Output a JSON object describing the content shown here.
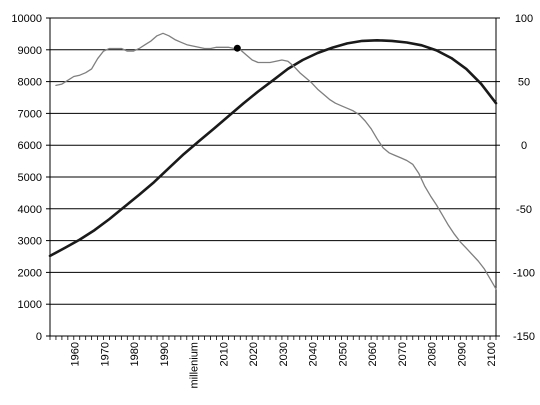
{
  "chart_data": {
    "type": "line",
    "title": "",
    "xlabel": "",
    "ylabel": "",
    "y2label": "",
    "grid": "horizontal",
    "legend": "none",
    "x_tick_labels": [
      {
        "x": 1960,
        "label": "1960"
      },
      {
        "x": 1970,
        "label": "1970"
      },
      {
        "x": 1980,
        "label": "1980"
      },
      {
        "x": 1990,
        "label": "1990"
      },
      {
        "x": 2000,
        "label": "millenium"
      },
      {
        "x": 2010,
        "label": "2010"
      },
      {
        "x": 2020,
        "label": "2020"
      },
      {
        "x": 2030,
        "label": "2030"
      },
      {
        "x": 2040,
        "label": "2040"
      },
      {
        "x": 2050,
        "label": "2050"
      },
      {
        "x": 2060,
        "label": "2060"
      },
      {
        "x": 2070,
        "label": "2070"
      },
      {
        "x": 2080,
        "label": "2080"
      },
      {
        "x": 2090,
        "label": "2090"
      },
      {
        "x": 2100,
        "label": "2100"
      }
    ],
    "xlim": [
      1950,
      2100
    ],
    "ylim_left": [
      0,
      10000
    ],
    "yticks_left": [
      0,
      1000,
      2000,
      3000,
      4000,
      5000,
      6000,
      7000,
      8000,
      9000,
      10000
    ],
    "ylim_right": [
      -150,
      100
    ],
    "yticks_right": [
      -150,
      -100,
      -50,
      0,
      50,
      100
    ],
    "series": [
      {
        "axis": "left",
        "color": "#1a1a1a",
        "values": [
          [
            1950,
            2520
          ],
          [
            1955,
            2770
          ],
          [
            1960,
            3030
          ],
          [
            1965,
            3330
          ],
          [
            1970,
            3680
          ],
          [
            1975,
            4060
          ],
          [
            1980,
            4440
          ],
          [
            1985,
            4840
          ],
          [
            1990,
            5280
          ],
          [
            1995,
            5720
          ],
          [
            2000,
            6120
          ],
          [
            2005,
            6510
          ],
          [
            2010,
            6910
          ],
          [
            2015,
            7310
          ],
          [
            2020,
            7690
          ],
          [
            2025,
            8040
          ],
          [
            2030,
            8400
          ],
          [
            2035,
            8680
          ],
          [
            2040,
            8900
          ],
          [
            2045,
            9070
          ],
          [
            2050,
            9200
          ],
          [
            2055,
            9280
          ],
          [
            2060,
            9300
          ],
          [
            2065,
            9280
          ],
          [
            2070,
            9230
          ],
          [
            2075,
            9140
          ],
          [
            2080,
            8980
          ],
          [
            2085,
            8740
          ],
          [
            2090,
            8400
          ],
          [
            2095,
            7930
          ],
          [
            2100,
            7320
          ]
        ]
      },
      {
        "axis": "right",
        "color": "#7f7f7f",
        "values": [
          [
            1952,
            47
          ],
          [
            1954,
            48
          ],
          [
            1956,
            51
          ],
          [
            1958,
            54
          ],
          [
            1960,
            55
          ],
          [
            1962,
            57
          ],
          [
            1964,
            60
          ],
          [
            1966,
            68
          ],
          [
            1968,
            74
          ],
          [
            1970,
            76
          ],
          [
            1972,
            76
          ],
          [
            1974,
            76
          ],
          [
            1976,
            74
          ],
          [
            1978,
            74
          ],
          [
            1980,
            76
          ],
          [
            1982,
            79
          ],
          [
            1984,
            82
          ],
          [
            1986,
            86
          ],
          [
            1988,
            88
          ],
          [
            1990,
            86
          ],
          [
            1992,
            83
          ],
          [
            1994,
            81
          ],
          [
            1996,
            79
          ],
          [
            1998,
            78
          ],
          [
            2000,
            77
          ],
          [
            2002,
            76
          ],
          [
            2004,
            76
          ],
          [
            2006,
            77
          ],
          [
            2008,
            77
          ],
          [
            2010,
            77
          ],
          [
            2012,
            76
          ],
          [
            2014,
            75
          ],
          [
            2016,
            71
          ],
          [
            2018,
            67
          ],
          [
            2020,
            65
          ],
          [
            2022,
            65
          ],
          [
            2024,
            65
          ],
          [
            2026,
            66
          ],
          [
            2028,
            67
          ],
          [
            2030,
            66
          ],
          [
            2032,
            62
          ],
          [
            2034,
            57
          ],
          [
            2036,
            53
          ],
          [
            2038,
            49
          ],
          [
            2040,
            44
          ],
          [
            2042,
            40
          ],
          [
            2044,
            36
          ],
          [
            2046,
            33
          ],
          [
            2048,
            31
          ],
          [
            2050,
            29
          ],
          [
            2052,
            27
          ],
          [
            2054,
            24
          ],
          [
            2056,
            19
          ],
          [
            2058,
            13
          ],
          [
            2060,
            5
          ],
          [
            2062,
            -2
          ],
          [
            2064,
            -6
          ],
          [
            2066,
            -8
          ],
          [
            2068,
            -10
          ],
          [
            2070,
            -12
          ],
          [
            2072,
            -15
          ],
          [
            2074,
            -22
          ],
          [
            2076,
            -32
          ],
          [
            2078,
            -40
          ],
          [
            2080,
            -47
          ],
          [
            2082,
            -55
          ],
          [
            2084,
            -63
          ],
          [
            2086,
            -70
          ],
          [
            2088,
            -76
          ],
          [
            2090,
            -81
          ],
          [
            2092,
            -86
          ],
          [
            2094,
            -91
          ],
          [
            2096,
            -97
          ],
          [
            2098,
            -105
          ],
          [
            2100,
            -113
          ]
        ]
      }
    ],
    "marker": {
      "x": 2013,
      "y": 9050,
      "axis": "left",
      "color": "#000000"
    }
  }
}
